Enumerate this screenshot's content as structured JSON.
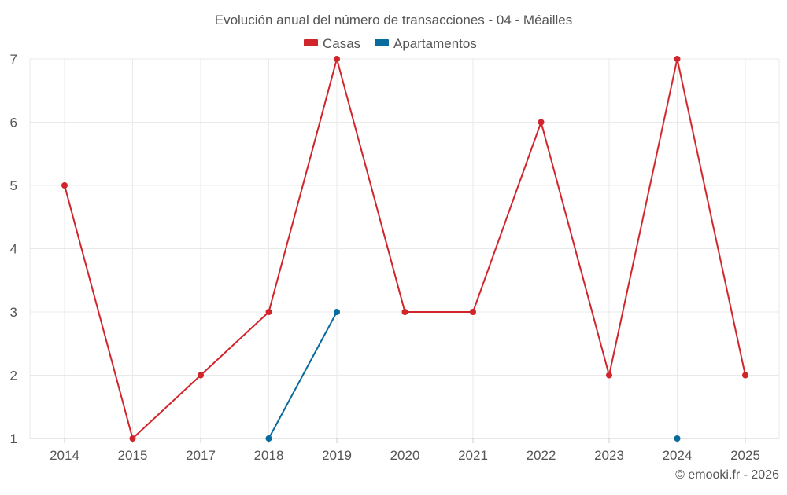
{
  "chart_data": {
    "type": "line",
    "title": "Evolución anual del número de transacciones - 04 - Méailles",
    "categories": [
      "2014",
      "2015",
      "2017",
      "2018",
      "2019",
      "2020",
      "2021",
      "2022",
      "2023",
      "2024",
      "2025"
    ],
    "series": [
      {
        "name": "Casas",
        "color": "#d0262b",
        "values": [
          5,
          1,
          2,
          3,
          7,
          3,
          3,
          6,
          2,
          7,
          2
        ]
      },
      {
        "name": "Apartamentos",
        "color": "#086b9d",
        "values": [
          null,
          null,
          null,
          1,
          3,
          null,
          null,
          null,
          null,
          1,
          null
        ]
      }
    ],
    "y_ticks": [
      "1",
      "2",
      "3",
      "4",
      "5",
      "6",
      "7"
    ],
    "ylim": [
      1,
      7
    ],
    "xlabel": "",
    "ylabel": "",
    "grid": true,
    "legend_position": "top-center"
  },
  "footer": {
    "credit": "© emooki.fr - 2026"
  }
}
